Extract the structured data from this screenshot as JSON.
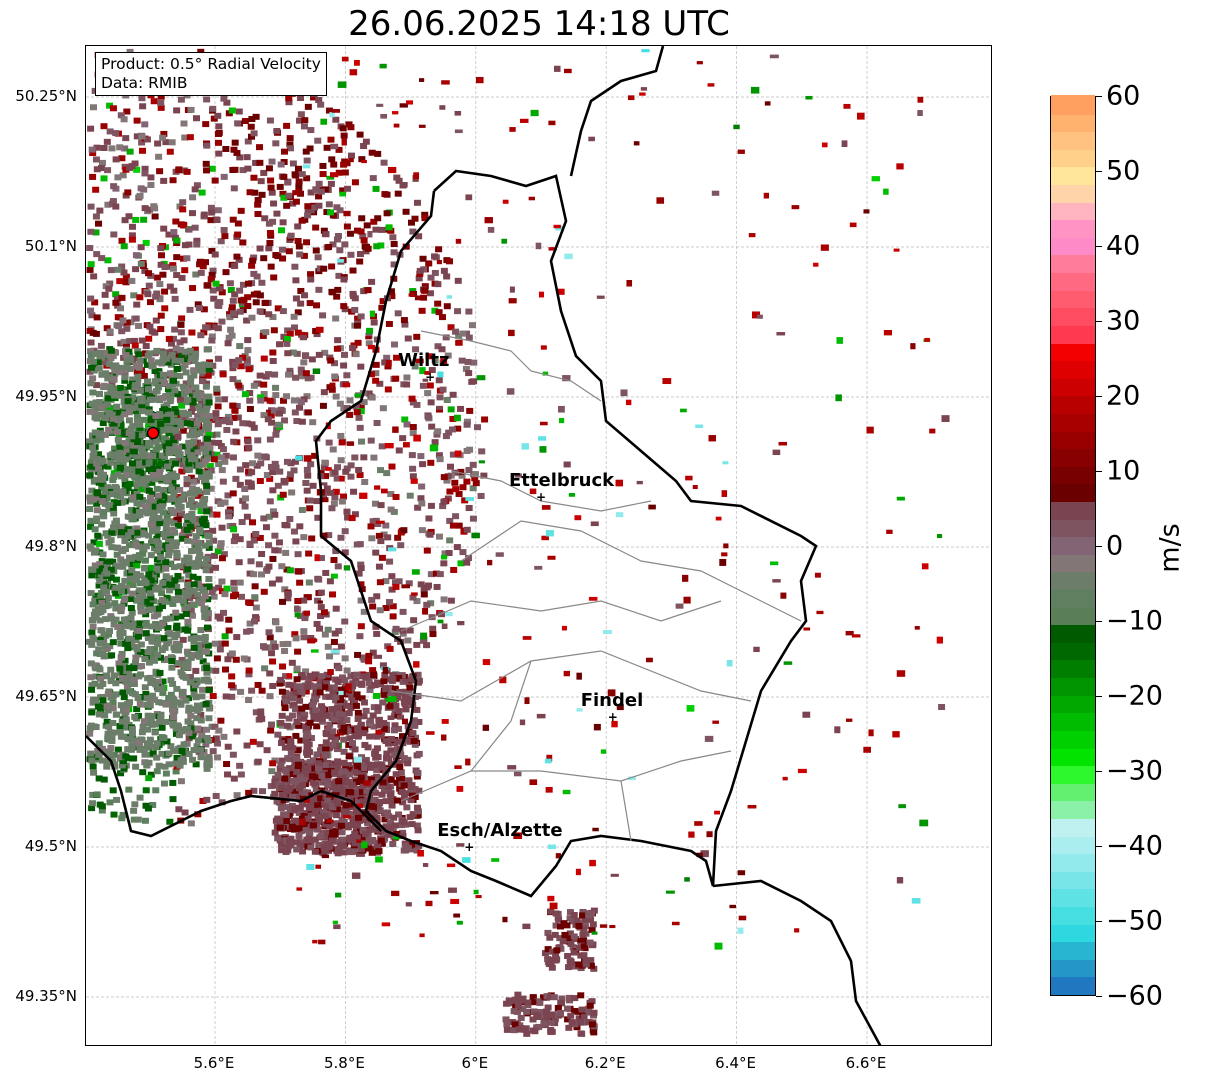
{
  "title": "26.06.2025 14:18 UTC",
  "info": {
    "product": "Product: 0.5° Radial Velocity",
    "data": "Data: RMIB"
  },
  "axes": {
    "lat_ticks": [
      {
        "value": 50.25,
        "label": "50.25°N"
      },
      {
        "value": 50.1,
        "label": "50.1°N"
      },
      {
        "value": 49.95,
        "label": "49.95°N"
      },
      {
        "value": 49.8,
        "label": "49.8°N"
      },
      {
        "value": 49.65,
        "label": "49.65°N"
      },
      {
        "value": 49.5,
        "label": "49.5°N"
      },
      {
        "value": 49.35,
        "label": "49.35°N"
      }
    ],
    "lon_ticks": [
      {
        "value": 5.6,
        "label": "5.6°E"
      },
      {
        "value": 5.8,
        "label": "5.8°E"
      },
      {
        "value": 6.0,
        "label": "6°E"
      },
      {
        "value": 6.2,
        "label": "6.2°E"
      },
      {
        "value": 6.4,
        "label": "6.4°E"
      },
      {
        "value": 6.6,
        "label": "6.6°E"
      }
    ]
  },
  "cities": [
    {
      "name": "Wiltz",
      "lon": 5.93,
      "lat": 49.97
    },
    {
      "name": "Ettelbruck",
      "lon": 6.1,
      "lat": 49.85
    },
    {
      "name": "Findel",
      "lon": 6.21,
      "lat": 49.63
    },
    {
      "name": "Esch/Alzette",
      "lon": 5.99,
      "lat": 49.5
    }
  ],
  "radar_site": {
    "lon": 5.505,
    "lat": 49.914
  },
  "colorbar": {
    "label": "m/s",
    "min": -60,
    "max": 60,
    "ticks": [
      "60",
      "50",
      "40",
      "30",
      "20",
      "10",
      "0",
      "−10",
      "−20",
      "−30",
      "−40",
      "−50",
      "−60"
    ],
    "colors": [
      "#1f78c0",
      "#2596c8",
      "#27b5d2",
      "#2ed8e0",
      "#45dfe2",
      "#5ee2e4",
      "#78e6e8",
      "#92eaec",
      "#abeeef",
      "#bff1f0",
      "#8bf0a8",
      "#63f070",
      "#2cf82c",
      "#00e400",
      "#00d000",
      "#00bc00",
      "#00a800",
      "#009400",
      "#007e00",
      "#006800",
      "#005a00",
      "#5a7e58",
      "#5f8060",
      "#6c7e6a",
      "#827676",
      "#826474",
      "#7e5460",
      "#7a4450",
      "#6a0000",
      "#780000",
      "#880000",
      "#980000",
      "#a80000",
      "#b80000",
      "#cc0000",
      "#de0000",
      "#f20000",
      "#ff3a50",
      "#ff4c60",
      "#ff5c70",
      "#ff6a82",
      "#ff7c9a",
      "#ff8ac8",
      "#ff94c4",
      "#ffb4c0",
      "#ffd4a8",
      "#ffe69a",
      "#ffd08a",
      "#ffc280",
      "#ffb26e",
      "#ffa060"
    ]
  }
}
